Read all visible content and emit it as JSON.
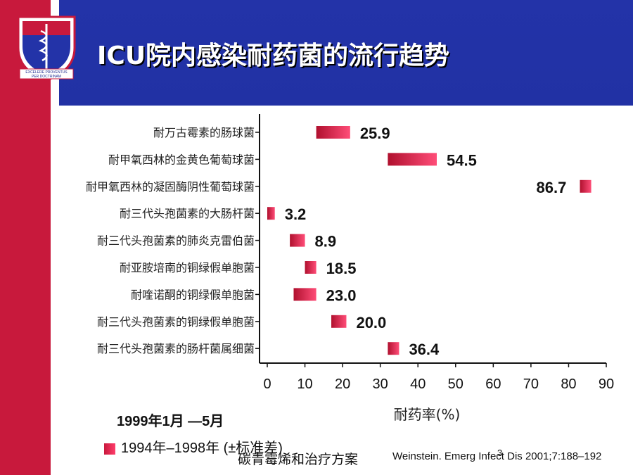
{
  "title": "ICU院内感染耐药菌的流行趋势",
  "logo": {
    "motto_line1": "EXCELERE PROVENTUS",
    "motto_line2": "PER DOCTRINAM"
  },
  "chart_data": {
    "type": "bar",
    "orientation": "horizontal",
    "categories": [
      "耐万古霉素的肠球菌",
      "耐甲氧西林的金黄色葡萄球菌",
      "耐甲氧西林的凝固酶阴性葡萄球菌",
      "耐三代头孢菌素的大肠杆菌",
      "耐三代头孢菌素的肺炎克雷伯菌",
      "耐亚胺培南的铜绿假单胞菌",
      "耐喹诺酮的铜绿假单胞菌",
      "耐三代头孢菌素的铜绿假单胞菌",
      "耐三代头孢菌素的肠杆菌属细菌"
    ],
    "series": [
      {
        "name": "1994年–1998年 (±标准差)",
        "low": [
          13,
          32,
          83,
          0,
          6,
          10,
          7,
          17,
          32
        ],
        "high": [
          22,
          45,
          86,
          2,
          10,
          13,
          13,
          21,
          35
        ]
      }
    ],
    "labels": [
      "25.9",
      "54.5",
      "86.7",
      "3.2",
      "8.9",
      "18.5",
      "23.0",
      "20.0",
      "36.4"
    ],
    "values": [
      25.9,
      54.5,
      86.7,
      3.2,
      8.9,
      18.5,
      23.0,
      20.0,
      36.4
    ],
    "xticks": [
      "0",
      "10",
      "20",
      "30",
      "40",
      "50",
      "60",
      "70",
      "80",
      "90"
    ],
    "xlabel": "耐药率(%)",
    "xlim": [
      0,
      90
    ],
    "bar_color": "#c8193c"
  },
  "legend": {
    "title": "1999年1月 —5月",
    "item": "1994年–1998年 (±标准差)"
  },
  "footnote": "碳青霉烯和治疗方案",
  "citation": "Weinstein. Emerg Infect Dis 2001;7:188–192",
  "page_number": "3"
}
